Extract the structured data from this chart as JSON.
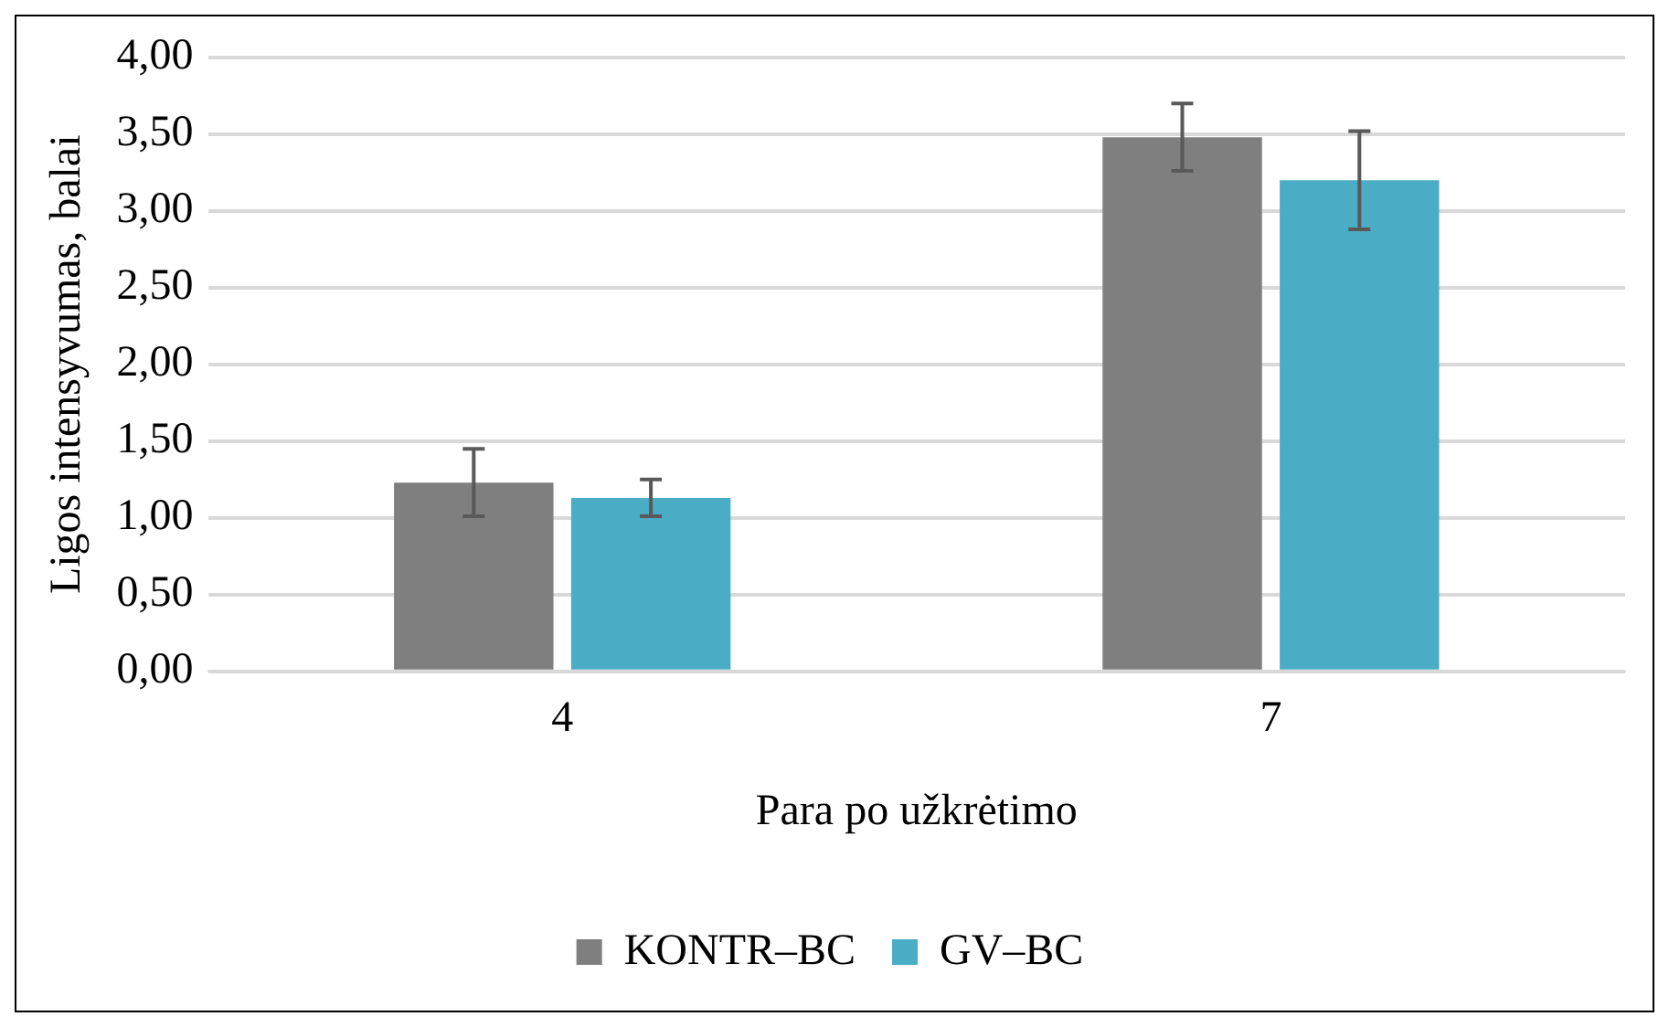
{
  "chart_data": {
    "type": "bar",
    "xlabel": "Para po užkrėtimo",
    "ylabel": "Ligos intensyvumas, balai",
    "categories": [
      "4",
      "7"
    ],
    "series": [
      {
        "name": "KONTR–BC",
        "color": "#7f7f7f",
        "values": [
          1.23,
          3.48
        ],
        "errors": [
          0.22,
          0.22
        ]
      },
      {
        "name": "GV–BC",
        "color": "#4bacc6",
        "values": [
          1.13,
          3.2
        ],
        "errors": [
          0.12,
          0.32
        ]
      }
    ],
    "ylim": [
      0,
      4
    ],
    "yticks": [
      {
        "value": 0,
        "label": "0,00"
      },
      {
        "value": 0.5,
        "label": "0,50"
      },
      {
        "value": 1,
        "label": "1,00"
      },
      {
        "value": 1.5,
        "label": "1,50"
      },
      {
        "value": 2,
        "label": "2,00"
      },
      {
        "value": 2.5,
        "label": "2,50"
      },
      {
        "value": 3,
        "label": "3,00"
      },
      {
        "value": 3.5,
        "label": "3,50"
      },
      {
        "value": 4,
        "label": "4,00"
      }
    ],
    "grid": "y",
    "legend": "bottom"
  }
}
